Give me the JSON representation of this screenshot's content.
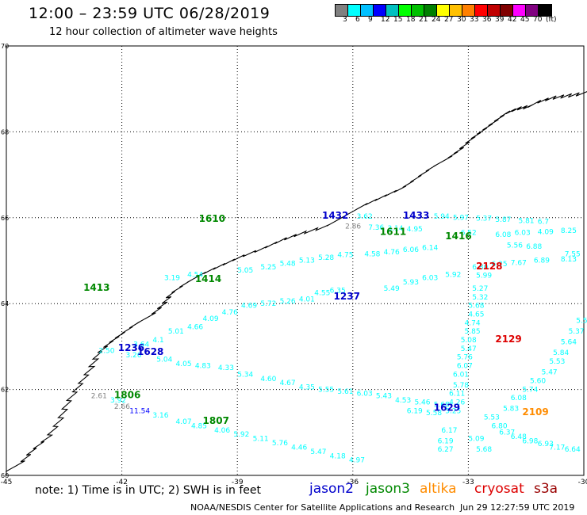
{
  "header": {
    "title": "12:00 – 23:59 UTC 06/28/2019",
    "subtitle": "12 hour collection of altimeter wave heights"
  },
  "color_scale": {
    "colors": [
      "#808080",
      "#00ffff",
      "#00c0ff",
      "#0000ff",
      "#00c0c0",
      "#00ff00",
      "#00c000",
      "#008000",
      "#ffff00",
      "#ffc000",
      "#ff8000",
      "#ff0000",
      "#c00000",
      "#800000",
      "#ff00ff",
      "#800080",
      "#000000"
    ],
    "labels": [
      "3",
      "6",
      "9",
      "12",
      "15",
      "18",
      "21",
      "24",
      "27",
      "30",
      "33",
      "36",
      "39",
      "42",
      "45",
      "70",
      "(ft)"
    ]
  },
  "axes": {
    "lon_ticks": [
      "-45",
      "-42",
      "-39",
      "-36",
      "-33",
      "-30"
    ],
    "lat_ticks": [
      "70",
      "68",
      "66",
      "64",
      "62",
      "60"
    ]
  },
  "satellites": [
    {
      "name": "jason2",
      "color": "#0000cc"
    },
    {
      "name": "jason3",
      "color": "#008800"
    },
    {
      "name": "altika",
      "color": "#ff8c00"
    },
    {
      "name": "cryosat",
      "color": "#dd0000"
    },
    {
      "name": "s3a",
      "color": "#990000"
    }
  ],
  "footer": {
    "note": "note:  1) Time is in UTC;  2) SWH is in feet",
    "credit": "NOAA/NESDIS Center for Satellite Applications and Research",
    "timestamp": "Jun 29 12:27:59 UTC 2019"
  },
  "chart_data": {
    "type": "scatter",
    "xlim": [
      -45,
      -30
    ],
    "ylim": [
      60,
      70
    ],
    "xlabel": "",
    "ylabel": "",
    "pass_times": [
      {
        "label": "1432",
        "lon": -36.8,
        "lat": 65.98,
        "sat": "jason2"
      },
      {
        "label": "1433",
        "lon": -34.7,
        "lat": 65.98,
        "sat": "jason2"
      },
      {
        "label": "1611",
        "lon": -35.3,
        "lat": 65.6,
        "sat": "jason3"
      },
      {
        "label": "1610",
        "lon": -40.0,
        "lat": 65.9,
        "sat": "jason3"
      },
      {
        "label": "1413",
        "lon": -43.0,
        "lat": 64.3,
        "sat": "jason3"
      },
      {
        "label": "1414",
        "lon": -40.1,
        "lat": 64.5,
        "sat": "jason3"
      },
      {
        "label": "1237",
        "lon": -36.5,
        "lat": 64.1,
        "sat": "jason2"
      },
      {
        "label": "2128",
        "lon": -32.8,
        "lat": 64.8,
        "sat": "cryosat"
      },
      {
        "label": "2129",
        "lon": -32.3,
        "lat": 63.1,
        "sat": "cryosat"
      },
      {
        "label": "1236",
        "lon": -42.1,
        "lat": 62.9,
        "sat": "jason2"
      },
      {
        "label": "1628",
        "lon": -41.6,
        "lat": 62.8,
        "sat": "jason2"
      },
      {
        "label": "1806",
        "lon": -42.2,
        "lat": 61.8,
        "sat": "jason3"
      },
      {
        "label": "1807",
        "lon": -39.9,
        "lat": 61.2,
        "sat": "jason3"
      },
      {
        "label": "1629",
        "lon": -33.9,
        "lat": 61.5,
        "sat": "jason2"
      },
      {
        "label": "2109",
        "lon": -31.6,
        "lat": 61.4,
        "sat": "altika"
      },
      {
        "label": "1416",
        "lon": -33.6,
        "lat": 65.5,
        "sat": "jason3"
      }
    ],
    "wave_heights": [
      {
        "v": "3.62",
        "lon": -35.9,
        "lat": 65.98,
        "c": "#00ffff"
      },
      {
        "v": "5.94",
        "lon": -33.9,
        "lat": 65.98,
        "c": "#00ffff"
      },
      {
        "v": "5.97",
        "lon": -33.4,
        "lat": 65.95,
        "c": "#00ffff"
      },
      {
        "v": "5.37",
        "lon": -32.8,
        "lat": 65.93,
        "c": "#00ffff"
      },
      {
        "v": "5.87",
        "lon": -32.3,
        "lat": 65.9,
        "c": "#00ffff"
      },
      {
        "v": "5.81",
        "lon": -31.7,
        "lat": 65.88,
        "c": "#00ffff"
      },
      {
        "v": "6.7",
        "lon": -31.2,
        "lat": 65.86,
        "c": "#00ffff"
      },
      {
        "v": "2.86",
        "lon": -36.2,
        "lat": 65.75,
        "c": "#808080"
      },
      {
        "v": "7.36",
        "lon": -35.6,
        "lat": 65.72,
        "c": "#00ffff"
      },
      {
        "v": "3.14",
        "lon": -35.1,
        "lat": 65.7,
        "c": "#00ffff"
      },
      {
        "v": "4.95",
        "lon": -34.6,
        "lat": 65.68,
        "c": "#00ffff"
      },
      {
        "v": "6.52",
        "lon": -33.2,
        "lat": 65.6,
        "c": "#00ffff"
      },
      {
        "v": "6.08",
        "lon": -32.3,
        "lat": 65.55,
        "c": "#00ffff"
      },
      {
        "v": "6.03",
        "lon": -31.8,
        "lat": 65.6,
        "c": "#00ffff"
      },
      {
        "v": "4.09",
        "lon": -31.2,
        "lat": 65.62,
        "c": "#00ffff"
      },
      {
        "v": "8.25",
        "lon": -30.6,
        "lat": 65.65,
        "c": "#00ffff"
      },
      {
        "v": "4.58",
        "lon": -35.7,
        "lat": 65.1,
        "c": "#00ffff"
      },
      {
        "v": "4.76",
        "lon": -35.2,
        "lat": 65.15,
        "c": "#00ffff"
      },
      {
        "v": "6.06",
        "lon": -34.7,
        "lat": 65.2,
        "c": "#00ffff"
      },
      {
        "v": "6.14",
        "lon": -34.2,
        "lat": 65.25,
        "c": "#00ffff"
      },
      {
        "v": "5.56",
        "lon": -32.0,
        "lat": 65.3,
        "c": "#00ffff"
      },
      {
        "v": "6.88",
        "lon": -31.5,
        "lat": 65.28,
        "c": "#00ffff"
      },
      {
        "v": "7.55",
        "lon": -30.5,
        "lat": 65.1,
        "c": "#00ffff"
      },
      {
        "v": "6.25",
        "lon": -32.4,
        "lat": 64.87,
        "c": "#00ffff"
      },
      {
        "v": "7.67",
        "lon": -31.9,
        "lat": 64.9,
        "c": "#00ffff"
      },
      {
        "v": "6.89",
        "lon": -31.3,
        "lat": 64.95,
        "c": "#00ffff"
      },
      {
        "v": "8.13",
        "lon": -30.6,
        "lat": 64.98,
        "c": "#00ffff"
      },
      {
        "v": "3.19",
        "lon": -40.9,
        "lat": 64.55,
        "c": "#00ffff"
      },
      {
        "v": "4.54",
        "lon": -40.3,
        "lat": 64.62,
        "c": "#00ffff"
      },
      {
        "v": "5.05",
        "lon": -39.0,
        "lat": 64.72,
        "c": "#00ffff"
      },
      {
        "v": "5.25",
        "lon": -38.4,
        "lat": 64.8,
        "c": "#00ffff"
      },
      {
        "v": "5.48",
        "lon": -37.9,
        "lat": 64.88,
        "c": "#00ffff"
      },
      {
        "v": "5.13",
        "lon": -37.4,
        "lat": 64.95,
        "c": "#00ffff"
      },
      {
        "v": "5.28",
        "lon": -36.9,
        "lat": 65.02,
        "c": "#00ffff"
      },
      {
        "v": "4.75",
        "lon": -36.4,
        "lat": 65.08,
        "c": "#00ffff"
      },
      {
        "v": "5.49",
        "lon": -35.2,
        "lat": 64.3,
        "c": "#00ffff"
      },
      {
        "v": "5.93",
        "lon": -34.7,
        "lat": 64.45,
        "c": "#00ffff"
      },
      {
        "v": "6.03",
        "lon": -34.2,
        "lat": 64.55,
        "c": "#00ffff"
      },
      {
        "v": "5.92",
        "lon": -33.6,
        "lat": 64.62,
        "c": "#00ffff"
      },
      {
        "v": "6.80",
        "lon": -32.9,
        "lat": 64.8,
        "c": "#00ffff"
      },
      {
        "v": "5.99",
        "lon": -32.8,
        "lat": 64.6,
        "c": "#00ffff"
      },
      {
        "v": "5.27",
        "lon": -32.9,
        "lat": 64.3,
        "c": "#00ffff"
      },
      {
        "v": "5.32",
        "lon": -32.9,
        "lat": 64.1,
        "c": "#00ffff"
      },
      {
        "v": "5.68",
        "lon": -33.0,
        "lat": 63.9,
        "c": "#00ffff"
      },
      {
        "v": "4.65",
        "lon": -33.0,
        "lat": 63.7,
        "c": "#00ffff"
      },
      {
        "v": "4.74",
        "lon": -33.1,
        "lat": 63.5,
        "c": "#00ffff"
      },
      {
        "v": "5.85",
        "lon": -33.1,
        "lat": 63.3,
        "c": "#00ffff"
      },
      {
        "v": "5.08",
        "lon": -33.2,
        "lat": 63.1,
        "c": "#00ffff"
      },
      {
        "v": "5.47",
        "lon": -33.2,
        "lat": 62.9,
        "c": "#00ffff"
      },
      {
        "v": "5.76",
        "lon": -33.3,
        "lat": 62.7,
        "c": "#00ffff"
      },
      {
        "v": "6.07",
        "lon": -33.3,
        "lat": 62.5,
        "c": "#00ffff"
      },
      {
        "v": "6.01",
        "lon": -33.4,
        "lat": 62.3,
        "c": "#00ffff"
      },
      {
        "v": "5.78",
        "lon": -33.4,
        "lat": 62.05,
        "c": "#00ffff"
      },
      {
        "v": "6.11",
        "lon": -33.5,
        "lat": 61.85,
        "c": "#00ffff"
      },
      {
        "v": "4.26",
        "lon": -33.5,
        "lat": 61.65,
        "c": "#00ffff"
      },
      {
        "v": "5.25",
        "lon": -33.6,
        "lat": 61.45,
        "c": "#00ffff"
      },
      {
        "v": "6.17",
        "lon": -33.7,
        "lat": 61.0,
        "c": "#00ffff"
      },
      {
        "v": "6.19",
        "lon": -33.8,
        "lat": 60.75,
        "c": "#00ffff"
      },
      {
        "v": "6.27",
        "lon": -33.8,
        "lat": 60.55,
        "c": "#00ffff"
      },
      {
        "v": "5.09",
        "lon": -33.0,
        "lat": 60.8,
        "c": "#00ffff"
      },
      {
        "v": "5.68",
        "lon": -32.8,
        "lat": 60.55,
        "c": "#00ffff"
      },
      {
        "v": "5.53",
        "lon": -32.6,
        "lat": 61.3,
        "c": "#00ffff"
      },
      {
        "v": "6.80",
        "lon": -32.4,
        "lat": 61.1,
        "c": "#00ffff"
      },
      {
        "v": "6.37",
        "lon": -32.2,
        "lat": 60.95,
        "c": "#00ffff"
      },
      {
        "v": "6.48",
        "lon": -31.9,
        "lat": 60.85,
        "c": "#00ffff"
      },
      {
        "v": "6.98",
        "lon": -31.6,
        "lat": 60.75,
        "c": "#00ffff"
      },
      {
        "v": "6.93",
        "lon": -31.2,
        "lat": 60.68,
        "c": "#00ffff"
      },
      {
        "v": "7.17",
        "lon": -30.9,
        "lat": 60.6,
        "c": "#00ffff"
      },
      {
        "v": "6.64",
        "lon": -30.5,
        "lat": 60.55,
        "c": "#00ffff"
      },
      {
        "v": "5.83",
        "lon": -32.1,
        "lat": 61.5,
        "c": "#00ffff"
      },
      {
        "v": "6.08",
        "lon": -31.9,
        "lat": 61.75,
        "c": "#00ffff"
      },
      {
        "v": "5.74",
        "lon": -31.6,
        "lat": 61.95,
        "c": "#00ffff"
      },
      {
        "v": "5.60",
        "lon": -31.4,
        "lat": 62.15,
        "c": "#00ffff"
      },
      {
        "v": "5.47",
        "lon": -31.1,
        "lat": 62.35,
        "c": "#00ffff"
      },
      {
        "v": "5.53",
        "lon": -30.9,
        "lat": 62.6,
        "c": "#00ffff"
      },
      {
        "v": "5.84",
        "lon": -30.8,
        "lat": 62.8,
        "c": "#00ffff"
      },
      {
        "v": "5.64",
        "lon": -30.6,
        "lat": 63.05,
        "c": "#00ffff"
      },
      {
        "v": "5.37",
        "lon": -30.4,
        "lat": 63.3,
        "c": "#00ffff"
      },
      {
        "v": "5.52",
        "lon": -30.2,
        "lat": 63.55,
        "c": "#00ffff"
      },
      {
        "v": "4.69",
        "lon": -38.9,
        "lat": 63.9,
        "c": "#00ffff"
      },
      {
        "v": "5.72",
        "lon": -38.4,
        "lat": 63.95,
        "c": "#00ffff"
      },
      {
        "v": "5.26",
        "lon": -37.9,
        "lat": 64.0,
        "c": "#00ffff"
      },
      {
        "v": "4.01",
        "lon": -37.4,
        "lat": 64.05,
        "c": "#00ffff"
      },
      {
        "v": "4.55",
        "lon": -37.0,
        "lat": 64.2,
        "c": "#00ffff"
      },
      {
        "v": "6.35",
        "lon": -36.6,
        "lat": 64.25,
        "c": "#00ffff"
      },
      {
        "v": "4.09",
        "lon": -39.9,
        "lat": 63.6,
        "c": "#00ffff"
      },
      {
        "v": "4.76",
        "lon": -39.4,
        "lat": 63.75,
        "c": "#00ffff"
      },
      {
        "v": "4.66",
        "lon": -40.3,
        "lat": 63.4,
        "c": "#00ffff"
      },
      {
        "v": "5.01",
        "lon": -40.8,
        "lat": 63.3,
        "c": "#00ffff"
      },
      {
        "v": "4.1",
        "lon": -41.2,
        "lat": 63.1,
        "c": "#00ffff"
      },
      {
        "v": "2.50",
        "lon": -42.6,
        "lat": 62.85,
        "c": "#00ffff"
      },
      {
        "v": "3.26",
        "lon": -41.9,
        "lat": 62.75,
        "c": "#00ffff"
      },
      {
        "v": "3.64",
        "lon": -41.7,
        "lat": 63.0,
        "c": "#00ffff"
      },
      {
        "v": "5.04",
        "lon": -41.1,
        "lat": 62.65,
        "c": "#00ffff"
      },
      {
        "v": "4.05",
        "lon": -40.6,
        "lat": 62.55,
        "c": "#00ffff"
      },
      {
        "v": "4.83",
        "lon": -40.1,
        "lat": 62.5,
        "c": "#00ffff"
      },
      {
        "v": "4.33",
        "lon": -39.5,
        "lat": 62.45,
        "c": "#00ffff"
      },
      {
        "v": "5.34",
        "lon": -39.0,
        "lat": 62.3,
        "c": "#00ffff"
      },
      {
        "v": "4.60",
        "lon": -38.4,
        "lat": 62.2,
        "c": "#00ffff"
      },
      {
        "v": "4.67",
        "lon": -37.9,
        "lat": 62.1,
        "c": "#00ffff"
      },
      {
        "v": "4.35",
        "lon": -37.4,
        "lat": 62.0,
        "c": "#00ffff"
      },
      {
        "v": "5.55",
        "lon": -36.9,
        "lat": 61.95,
        "c": "#00ffff"
      },
      {
        "v": "5.61",
        "lon": -36.4,
        "lat": 61.9,
        "c": "#00ffff"
      },
      {
        "v": "6.03",
        "lon": -35.9,
        "lat": 61.85,
        "c": "#00ffff"
      },
      {
        "v": "5.43",
        "lon": -35.4,
        "lat": 61.8,
        "c": "#00ffff"
      },
      {
        "v": "4.53",
        "lon": -34.9,
        "lat": 61.7,
        "c": "#00ffff"
      },
      {
        "v": "5.46",
        "lon": -34.4,
        "lat": 61.65,
        "c": "#00ffff"
      },
      {
        "v": "5.68",
        "lon": -33.9,
        "lat": 61.6,
        "c": "#00ffff"
      },
      {
        "v": "6.19",
        "lon": -34.6,
        "lat": 61.45,
        "c": "#00ffff"
      },
      {
        "v": "5.58",
        "lon": -34.1,
        "lat": 61.4,
        "c": "#00ffff"
      },
      {
        "v": "2.61",
        "lon": -42.8,
        "lat": 61.8,
        "c": "#808080"
      },
      {
        "v": "2.66",
        "lon": -42.2,
        "lat": 61.55,
        "c": "#808080"
      },
      {
        "v": "3.92",
        "lon": -42.3,
        "lat": 61.7,
        "c": "#00ffff"
      },
      {
        "v": "11.54",
        "lon": -41.8,
        "lat": 61.45,
        "c": "#0000ff"
      },
      {
        "v": "3.16",
        "lon": -41.2,
        "lat": 61.35,
        "c": "#00ffff"
      },
      {
        "v": "4.07",
        "lon": -40.6,
        "lat": 61.2,
        "c": "#00ffff"
      },
      {
        "v": "4.85",
        "lon": -40.2,
        "lat": 61.1,
        "c": "#00ffff"
      },
      {
        "v": "4.06",
        "lon": -39.6,
        "lat": 61.0,
        "c": "#00ffff"
      },
      {
        "v": "5.92",
        "lon": -39.1,
        "lat": 60.9,
        "c": "#00ffff"
      },
      {
        "v": "5.11",
        "lon": -38.6,
        "lat": 60.8,
        "c": "#00ffff"
      },
      {
        "v": "5.76",
        "lon": -38.1,
        "lat": 60.7,
        "c": "#00ffff"
      },
      {
        "v": "4.46",
        "lon": -37.6,
        "lat": 60.6,
        "c": "#00ffff"
      },
      {
        "v": "5.47",
        "lon": -37.1,
        "lat": 60.5,
        "c": "#00ffff"
      },
      {
        "v": "4.18",
        "lon": -36.6,
        "lat": 60.4,
        "c": "#00ffff"
      },
      {
        "v": "4.97",
        "lon": -36.1,
        "lat": 60.3,
        "c": "#00ffff"
      }
    ]
  }
}
